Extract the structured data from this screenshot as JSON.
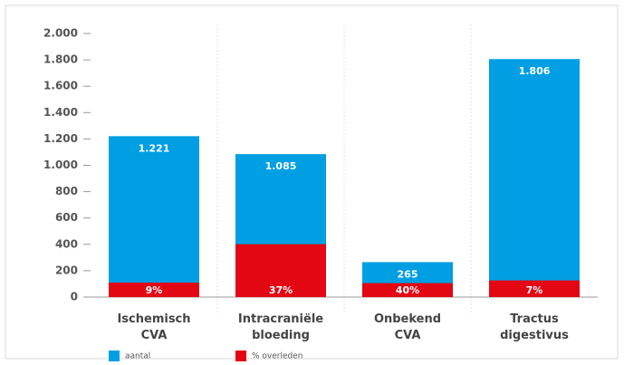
{
  "chart_data": {
    "type": "bar",
    "categories": [
      [
        "Ischemisch",
        "CVA"
      ],
      [
        "Intracraniële",
        "bloeding"
      ],
      [
        "Onbekend",
        "CVA"
      ],
      [
        "Tractus",
        "digestivus"
      ]
    ],
    "series": [
      {
        "name": "aantal",
        "color": "#009fe3",
        "values": [
          1221,
          1085,
          265,
          1806
        ],
        "value_labels": [
          "1.221",
          "1.085",
          "265",
          "1.806"
        ]
      },
      {
        "name": "% overleden",
        "color": "#e30613",
        "values": [
          9,
          37,
          40,
          7
        ],
        "value_labels": [
          "9%",
          "37%",
          "40%",
          "7%"
        ]
      }
    ],
    "ylim": [
      0,
      2000
    ],
    "yticks": [
      0,
      200,
      400,
      600,
      800,
      {
        "value": 1000,
        "label": "1.000"
      },
      {
        "value": 1200,
        "label": "1.200"
      },
      {
        "value": 1400,
        "label": "1.400"
      },
      {
        "value": 1600,
        "label": "1.600"
      },
      {
        "value": 1800,
        "label": "1.800"
      },
      {
        "value": 2000,
        "label": "2.000"
      }
    ]
  }
}
